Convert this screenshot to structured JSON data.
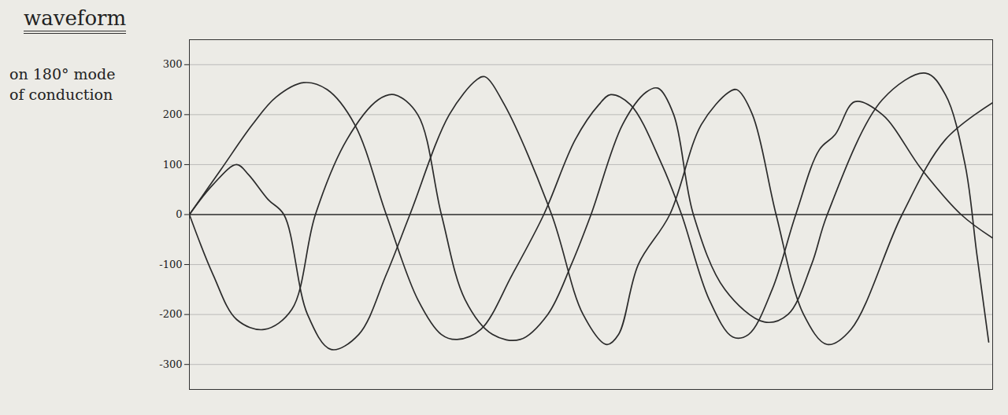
{
  "chart_data": {
    "type": "line",
    "title": "waveform",
    "ylabel": "on 180° mode of conduction",
    "xlim": [
      0,
      1020
    ],
    "ylim": [
      -350,
      350
    ],
    "yticks": [
      -300,
      -200,
      -100,
      0,
      100,
      200,
      300
    ],
    "grid": true,
    "tick_labels": "y",
    "series": [
      {
        "color": "#2b2b2b",
        "x": [
          0,
          40,
          80,
          110,
          145,
          175,
          210,
          250,
          290,
          320,
          340,
          370,
          410,
          450,
          490,
          520,
          535,
          560,
          600,
          625,
          660,
          690,
          710,
          740,
          770,
          800,
          820,
          845,
          880,
          930,
          980,
          1020
        ],
        "values": [
          0,
          90,
          180,
          235,
          264,
          250,
          180,
          0,
          -170,
          -240,
          -250,
          -230,
          -120,
          0,
          150,
          220,
          240,
          220,
          100,
          0,
          -170,
          -245,
          -240,
          -150,
          0,
          130,
          160,
          226,
          200,
          90,
          0,
          -47
        ]
      },
      {
        "color": "#2b2b2b",
        "x": [
          0,
          30,
          60,
          95,
          130,
          160,
          200,
          240,
          260,
          290,
          320,
          350,
          385,
          420,
          455,
          485,
          510,
          550,
          580,
          595,
          615,
          640,
          680,
          730,
          760,
          790,
          810,
          880,
          935,
          960,
          985,
          1000,
          1015
        ],
        "values": [
          0,
          -120,
          -210,
          -230,
          -190,
          0,
          150,
          230,
          240,
          200,
          0,
          -170,
          -240,
          -250,
          -200,
          -100,
          0,
          180,
          245,
          253,
          200,
          0,
          -150,
          -215,
          -200,
          -100,
          0,
          230,
          283,
          240,
          100,
          -80,
          -255
        ]
      },
      {
        "color": "#2b2b2b",
        "x": [
          0,
          30,
          60,
          75,
          100,
          120,
          150,
          180,
          215,
          250,
          280,
          330,
          365,
          375,
          400,
          460,
          500,
          530,
          545,
          570,
          610,
          650,
          685,
          695,
          715,
          745,
          780,
          810,
          840,
          905,
          960,
          1020
        ],
        "values": [
          0,
          60,
          100,
          80,
          30,
          0,
          -200,
          -270,
          -240,
          -120,
          0,
          200,
          270,
          276,
          220,
          0,
          -200,
          -260,
          -240,
          -100,
          0,
          180,
          245,
          250,
          200,
          0,
          -200,
          -260,
          -230,
          0,
          150,
          224
        ]
      }
    ]
  }
}
